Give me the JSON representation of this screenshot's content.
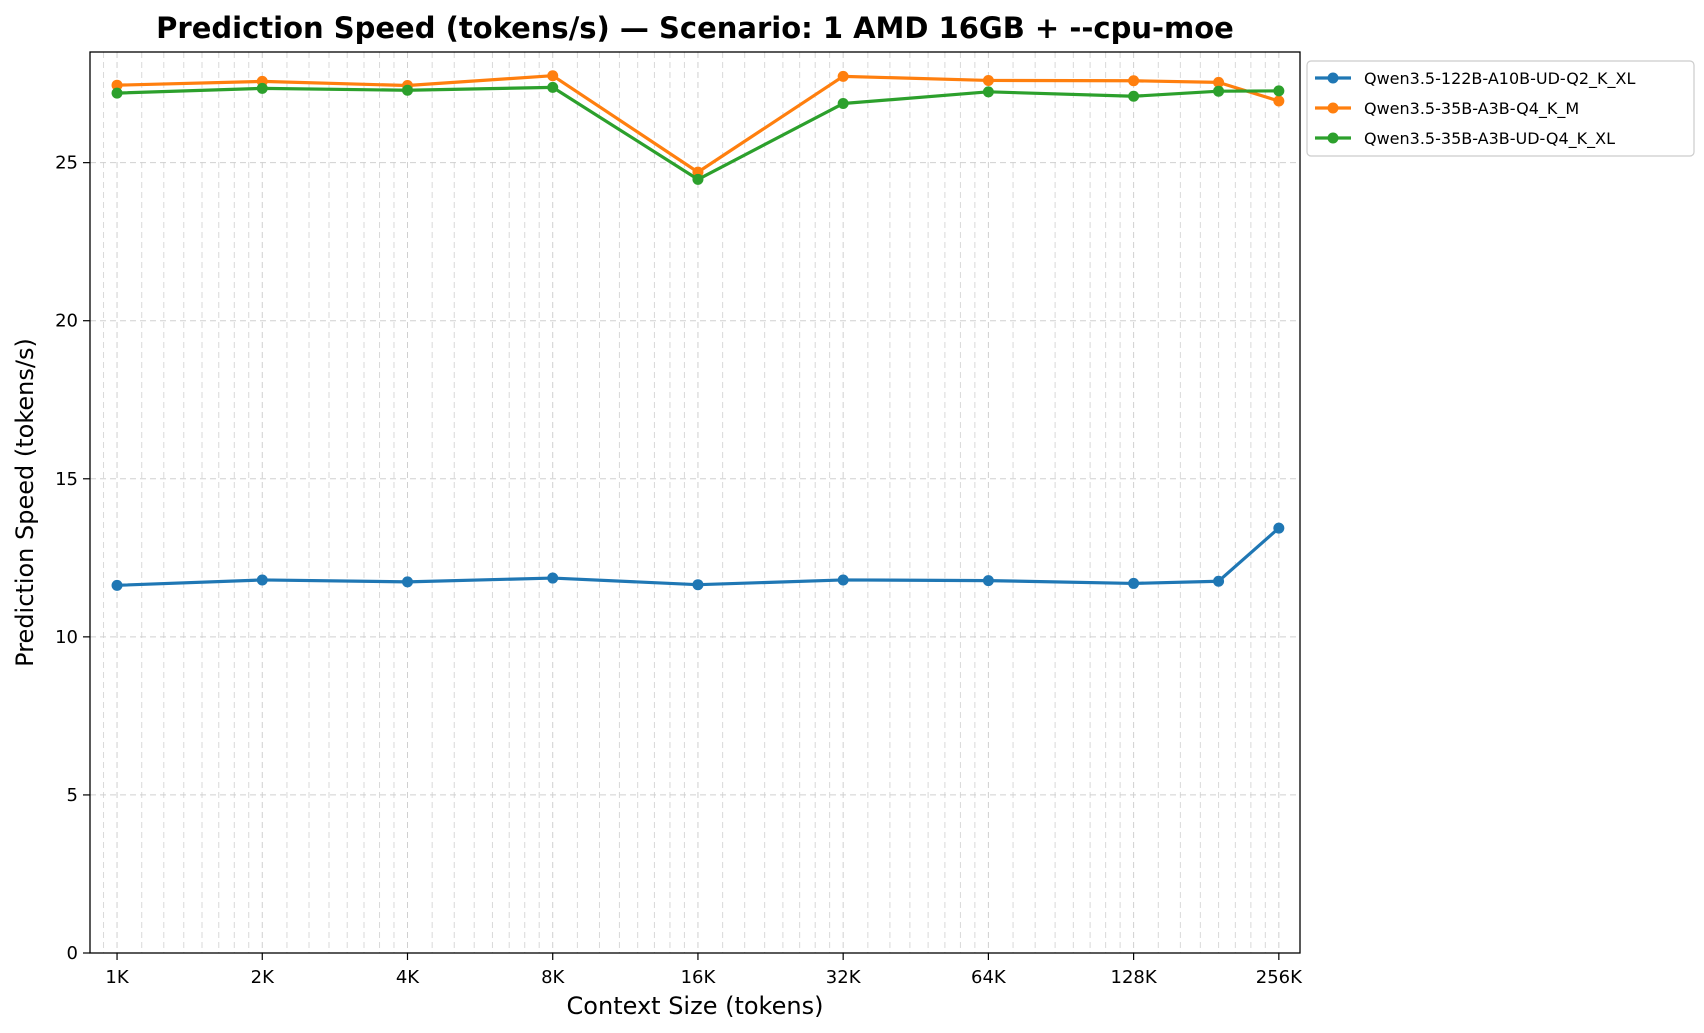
{
  "chart_data": {
    "type": "line",
    "title": "Prediction Speed (tokens/s) — Scenario: 1 AMD 16GB + --cpu-moe",
    "xlabel": "Context Size (tokens)",
    "ylabel": "Prediction Speed (tokens/s)",
    "x_scale": "log2",
    "x_ticks": [
      1024,
      2048,
      4096,
      8192,
      16384,
      32768,
      65536,
      131072,
      262144
    ],
    "x_tick_labels": [
      "1K",
      "2K",
      "4K",
      "8K",
      "16K",
      "32K",
      "64K",
      "128K",
      "256K"
    ],
    "xlim": [
      900,
      290000
    ],
    "ylim": [
      0,
      28.5
    ],
    "y_ticks": [
      0,
      5,
      10,
      15,
      20,
      25
    ],
    "y_tick_labels": [
      "0",
      "5",
      "10",
      "15",
      "20",
      "25"
    ],
    "grid": true,
    "legend_position": "outside-top-right",
    "x": [
      1024,
      2048,
      4096,
      8192,
      16384,
      32768,
      65536,
      131072,
      196608,
      262144
    ],
    "series": [
      {
        "name": "Qwen3.5-122B-A10B-UD-Q2_K_XL",
        "color": "#1f77b4",
        "values": [
          11.63,
          11.8,
          11.74,
          11.86,
          11.65,
          11.8,
          11.78,
          11.69,
          11.76,
          13.44
        ]
      },
      {
        "name": "Qwen3.5-35B-A3B-Q4_K_M",
        "color": "#ff7f0e",
        "values": [
          27.45,
          27.57,
          27.44,
          27.75,
          24.7,
          27.73,
          27.6,
          27.59,
          27.54,
          26.95
        ]
      },
      {
        "name": "Qwen3.5-35B-A3B-UD-Q4_K_XL",
        "color": "#2ca02c",
        "values": [
          27.2,
          27.35,
          27.29,
          27.38,
          24.47,
          26.87,
          27.24,
          27.1,
          27.26,
          27.27
        ]
      }
    ]
  }
}
